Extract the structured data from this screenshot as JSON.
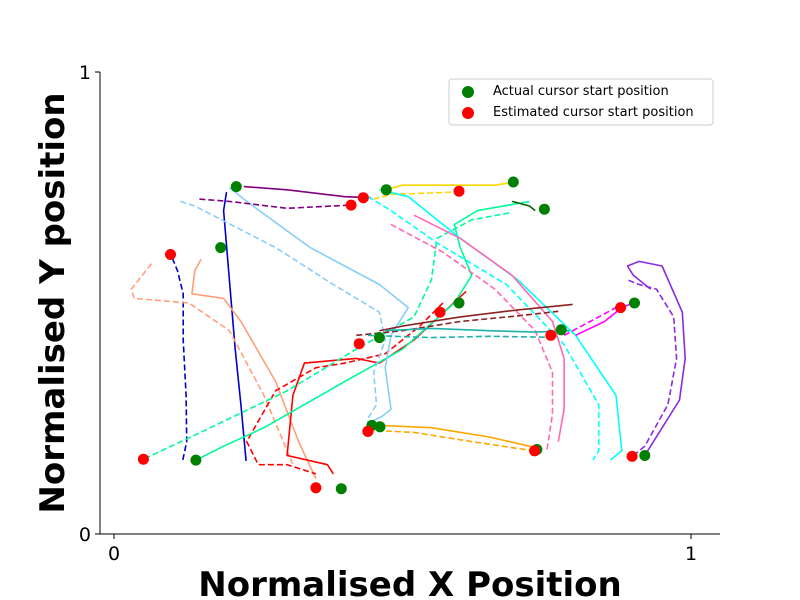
{
  "chart_data": {
    "type": "scatter",
    "title": "",
    "xlabel": "Normalised X Position",
    "ylabel": "Normalised Y position",
    "xlim": [
      -0.02,
      1.05
    ],
    "ylim": [
      0,
      1
    ],
    "xticks": [
      {
        "value": 0,
        "label": "0"
      },
      {
        "value": 1,
        "label": "1"
      }
    ],
    "yticks": [
      {
        "value": 0,
        "label": "0"
      },
      {
        "value": 1,
        "label": "1"
      }
    ],
    "grid": false,
    "legend": {
      "placement": "upper-right",
      "entries": [
        {
          "label": "Actual cursor start position",
          "color": "#008000"
        },
        {
          "label": "Estimated cursor start position",
          "color": "#ff0000"
        }
      ]
    },
    "trajectories": [
      {
        "color": "#0000cd",
        "actual": [
          [
            0.195,
            0.74
          ],
          [
            0.19,
            0.7
          ],
          [
            0.2,
            0.55
          ],
          [
            0.21,
            0.4
          ],
          [
            0.22,
            0.28
          ],
          [
            0.229,
            0.158
          ]
        ],
        "estimated": [
          [
            0.095,
            0.615
          ],
          [
            0.11,
            0.57
          ],
          [
            0.12,
            0.52
          ],
          [
            0.12,
            0.42
          ],
          [
            0.125,
            0.3
          ],
          [
            0.126,
            0.2
          ],
          [
            0.119,
            0.159
          ]
        ],
        "start_actual": [
          0.185,
          0.62
        ],
        "start_estimated": [
          0.098,
          0.605
        ]
      },
      {
        "color": "#ffa07a",
        "actual": [
          [
            0.151,
            0.595
          ],
          [
            0.14,
            0.57
          ],
          [
            0.135,
            0.52
          ],
          [
            0.19,
            0.51
          ],
          [
            0.22,
            0.46
          ],
          [
            0.28,
            0.33
          ],
          [
            0.32,
            0.2
          ],
          [
            0.35,
            0.12
          ]
        ],
        "estimated": [
          [
            0.065,
            0.585
          ],
          [
            0.03,
            0.53
          ],
          [
            0.035,
            0.51
          ],
          [
            0.13,
            0.5
          ],
          [
            0.2,
            0.44
          ],
          [
            0.26,
            0.3
          ],
          [
            0.31,
            0.15
          ]
        ],
        "start_actual": [
          0.394,
          0.098
        ],
        "start_estimated": [
          0.35,
          0.1
        ]
      },
      {
        "color": "#ff0000",
        "actual": [
          [
            0.61,
            0.525
          ],
          [
            0.58,
            0.49
          ],
          [
            0.52,
            0.42
          ],
          [
            0.46,
            0.37
          ],
          [
            0.42,
            0.38
          ],
          [
            0.33,
            0.37
          ],
          [
            0.31,
            0.3
          ],
          [
            0.3,
            0.17
          ],
          [
            0.37,
            0.15
          ],
          [
            0.38,
            0.13
          ]
        ],
        "estimated": [
          [
            0.57,
            0.5
          ],
          [
            0.53,
            0.45
          ],
          [
            0.47,
            0.39
          ],
          [
            0.4,
            0.37
          ],
          [
            0.35,
            0.36
          ],
          [
            0.28,
            0.31
          ],
          [
            0.23,
            0.2
          ],
          [
            0.25,
            0.15
          ],
          [
            0.3,
            0.15
          ],
          [
            0.35,
            0.13
          ]
        ],
        "start_actual": [
          0.598,
          0.5
        ],
        "start_estimated": [
          0.565,
          0.48
        ]
      },
      {
        "color": "#00fa9a",
        "actual": [
          [
            0.72,
            0.72
          ],
          [
            0.63,
            0.7
          ],
          [
            0.59,
            0.67
          ],
          [
            0.6,
            0.62
          ],
          [
            0.62,
            0.56
          ],
          [
            0.59,
            0.5
          ],
          [
            0.5,
            0.4
          ],
          [
            0.4,
            0.33
          ],
          [
            0.26,
            0.23
          ],
          [
            0.19,
            0.19
          ],
          [
            0.142,
            0.16
          ]
        ],
        "estimated": [
          [
            0.685,
            0.695
          ],
          [
            0.62,
            0.68
          ],
          [
            0.56,
            0.64
          ],
          [
            0.55,
            0.55
          ],
          [
            0.52,
            0.47
          ],
          [
            0.42,
            0.4
          ],
          [
            0.3,
            0.31
          ],
          [
            0.15,
            0.22
          ],
          [
            0.051,
            0.162
          ]
        ],
        "start_actual": [
          0.142,
          0.16
        ],
        "start_estimated": [
          0.051,
          0.162
        ]
      },
      {
        "color": "#87cefa",
        "actual": [
          [
            0.2,
            0.75
          ],
          [
            0.23,
            0.72
          ],
          [
            0.34,
            0.62
          ],
          [
            0.46,
            0.54
          ],
          [
            0.51,
            0.49
          ],
          [
            0.48,
            0.43
          ],
          [
            0.47,
            0.36
          ],
          [
            0.48,
            0.27
          ],
          [
            0.465,
            0.255
          ],
          [
            0.44,
            0.24
          ]
        ],
        "estimated": [
          [
            0.115,
            0.72
          ],
          [
            0.14,
            0.71
          ],
          [
            0.28,
            0.62
          ],
          [
            0.38,
            0.54
          ],
          [
            0.46,
            0.48
          ],
          [
            0.47,
            0.42
          ],
          [
            0.45,
            0.35
          ],
          [
            0.455,
            0.28
          ],
          [
            0.44,
            0.25
          ],
          [
            0.44,
            0.24
          ]
        ],
        "start_actual": [
          0.447,
          0.235
        ],
        "start_estimated": [
          0.44,
          0.222
        ]
      },
      {
        "color": "#800080",
        "actual": [
          [
            0.225,
            0.752
          ],
          [
            0.3,
            0.745
          ],
          [
            0.4,
            0.73
          ],
          [
            0.445,
            0.728
          ]
        ],
        "estimated": [
          [
            0.148,
            0.725
          ],
          [
            0.2,
            0.72
          ],
          [
            0.3,
            0.705
          ],
          [
            0.41,
            0.712
          ]
        ],
        "start_actual": [
          0.212,
          0.752
        ],
        "start_estimated": [
          0.411,
          0.712
        ]
      },
      {
        "color": "#ffd700",
        "actual": [
          [
            0.47,
            0.745
          ],
          [
            0.5,
            0.755
          ],
          [
            0.66,
            0.755
          ],
          [
            0.685,
            0.76
          ]
        ],
        "estimated": [
          [
            0.45,
            0.725
          ],
          [
            0.48,
            0.735
          ],
          [
            0.59,
            0.74
          ],
          [
            0.598,
            0.742
          ]
        ],
        "start_actual": [
          0.692,
          0.762
        ],
        "start_estimated": [
          0.598,
          0.742
        ]
      },
      {
        "color": "#00ffff",
        "actual": [
          [
            0.46,
            0.745
          ],
          [
            0.51,
            0.73
          ],
          [
            0.6,
            0.64
          ],
          [
            0.7,
            0.55
          ],
          [
            0.8,
            0.43
          ],
          [
            0.87,
            0.3
          ],
          [
            0.88,
            0.18
          ],
          [
            0.86,
            0.16
          ]
        ],
        "estimated": [
          [
            0.44,
            0.73
          ],
          [
            0.48,
            0.7
          ],
          [
            0.56,
            0.63
          ],
          [
            0.68,
            0.54
          ],
          [
            0.78,
            0.41
          ],
          [
            0.84,
            0.28
          ],
          [
            0.84,
            0.18
          ],
          [
            0.83,
            0.16
          ]
        ],
        "start_actual": [
          0.472,
          0.745
        ],
        "start_estimated": [
          0.432,
          0.728
        ]
      },
      {
        "color": "#006400",
        "actual": [
          [
            0.69,
            0.72
          ],
          [
            0.72,
            0.71
          ],
          [
            0.73,
            0.7
          ]
        ],
        "estimated": [],
        "start_actual": [
          0.746,
          0.703
        ],
        "start_estimated": []
      },
      {
        "color": "#ff69b4",
        "actual": [
          [
            0.52,
            0.69
          ],
          [
            0.6,
            0.64
          ],
          [
            0.69,
            0.56
          ],
          [
            0.76,
            0.46
          ],
          [
            0.78,
            0.38
          ],
          [
            0.78,
            0.27
          ],
          [
            0.77,
            0.2
          ]
        ],
        "estimated": [
          [
            0.48,
            0.67
          ],
          [
            0.57,
            0.61
          ],
          [
            0.66,
            0.53
          ],
          [
            0.73,
            0.44
          ],
          [
            0.76,
            0.35
          ],
          [
            0.76,
            0.26
          ],
          [
            0.75,
            0.18
          ]
        ],
        "start_actual": [
          0.733,
          0.183
        ],
        "start_estimated": [
          0.729,
          0.18
        ]
      },
      {
        "color": "#8b2323",
        "actual": [
          [
            0.46,
            0.44
          ],
          [
            0.5,
            0.45
          ],
          [
            0.6,
            0.47
          ],
          [
            0.7,
            0.485
          ],
          [
            0.795,
            0.497
          ]
        ],
        "estimated": [
          [
            0.42,
            0.43
          ],
          [
            0.5,
            0.44
          ],
          [
            0.6,
            0.46
          ],
          [
            0.7,
            0.472
          ],
          [
            0.77,
            0.482
          ]
        ],
        "start_actual": [
          0.46,
          0.425
        ],
        "start_estimated": [
          0.425,
          0.412
        ]
      },
      {
        "color": "#20b2aa",
        "actual": [
          [
            0.47,
            0.44
          ],
          [
            0.55,
            0.445
          ],
          [
            0.65,
            0.44
          ],
          [
            0.73,
            0.437
          ],
          [
            0.79,
            0.44
          ]
        ],
        "estimated": [
          [
            0.44,
            0.43
          ],
          [
            0.55,
            0.425
          ],
          [
            0.65,
            0.428
          ],
          [
            0.75,
            0.426
          ],
          [
            0.76,
            0.425
          ]
        ],
        "start_actual": [
          0.775,
          0.442
        ],
        "start_estimated": [
          0.757,
          0.43
        ]
      },
      {
        "color": "#ffa500",
        "actual": [
          [
            0.46,
            0.235
          ],
          [
            0.55,
            0.23
          ],
          [
            0.65,
            0.21
          ],
          [
            0.72,
            0.19
          ],
          [
            0.74,
            0.185
          ]
        ],
        "estimated": [
          [
            0.44,
            0.225
          ],
          [
            0.52,
            0.22
          ],
          [
            0.62,
            0.2
          ],
          [
            0.7,
            0.185
          ],
          [
            0.729,
            0.18
          ]
        ],
        "start_actual": [
          0.461,
          0.232
        ],
        "start_estimated": [
          0.44,
          0.222
        ]
      },
      {
        "color": "#ff00ff",
        "actual": [
          [
            0.8,
            0.43
          ],
          [
            0.85,
            0.46
          ],
          [
            0.88,
            0.49
          ],
          [
            0.9,
            0.5
          ]
        ],
        "estimated": [
          [
            0.78,
            0.43
          ],
          [
            0.84,
            0.47
          ],
          [
            0.87,
            0.49
          ]
        ],
        "start_actual": [
          0.902,
          0.5
        ],
        "start_estimated": [
          0.878,
          0.49
        ]
      },
      {
        "color": "#8a2be2",
        "actual": [
          [
            0.92,
            0.17
          ],
          [
            0.93,
            0.19
          ],
          [
            0.98,
            0.29
          ],
          [
            0.99,
            0.38
          ],
          [
            0.985,
            0.48
          ],
          [
            0.95,
            0.58
          ],
          [
            0.91,
            0.59
          ],
          [
            0.89,
            0.58
          ],
          [
            0.9,
            0.56
          ],
          [
            0.93,
            0.53
          ]
        ],
        "estimated": [
          [
            0.9,
            0.17
          ],
          [
            0.92,
            0.19
          ],
          [
            0.96,
            0.28
          ],
          [
            0.975,
            0.38
          ],
          [
            0.97,
            0.47
          ],
          [
            0.94,
            0.53
          ],
          [
            0.91,
            0.54
          ],
          [
            0.89,
            0.55
          ]
        ],
        "start_actual": [
          0.92,
          0.17
        ],
        "start_estimated": [
          0.898,
          0.168
        ]
      }
    ]
  }
}
